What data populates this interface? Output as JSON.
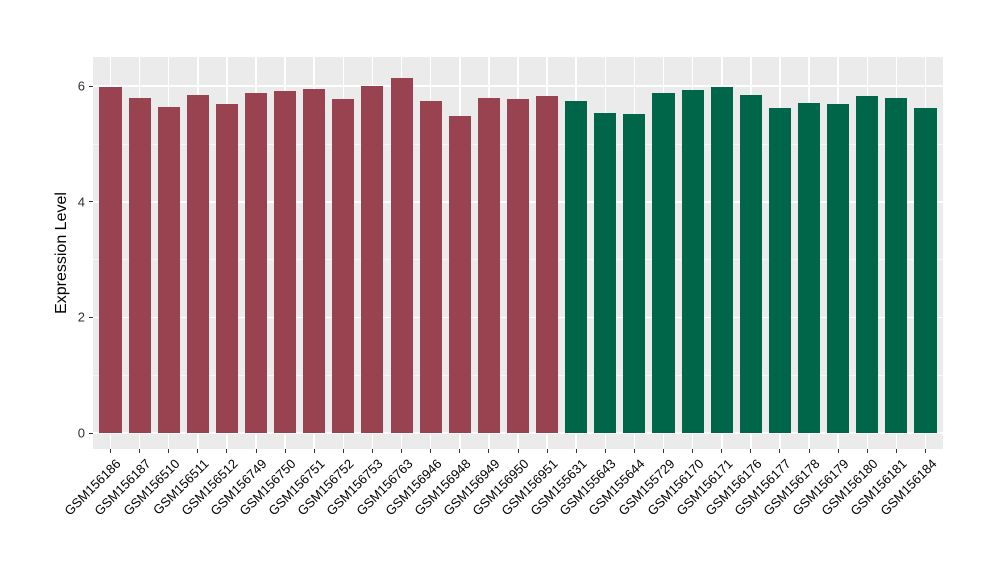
{
  "chart_data": {
    "type": "bar",
    "title": "",
    "xlabel": "",
    "ylabel": "Expression Level",
    "categories": [
      "GSM156186",
      "GSM156187",
      "GSM156510",
      "GSM156511",
      "GSM156512",
      "GSM156749",
      "GSM156750",
      "GSM156751",
      "GSM156752",
      "GSM156753",
      "GSM156763",
      "GSM156946",
      "GSM156948",
      "GSM156949",
      "GSM156950",
      "GSM156951",
      "GSM155631",
      "GSM155643",
      "GSM155644",
      "GSM155729",
      "GSM156170",
      "GSM156171",
      "GSM156176",
      "GSM156177",
      "GSM156178",
      "GSM156179",
      "GSM156180",
      "GSM156181",
      "GSM156184"
    ],
    "values": [
      5.99,
      5.79,
      5.64,
      5.85,
      5.7,
      5.88,
      5.91,
      5.96,
      5.77,
      6.01,
      6.15,
      5.75,
      5.48,
      5.8,
      5.77,
      5.83,
      5.75,
      5.54,
      5.52,
      5.89,
      5.93,
      5.99,
      5.85,
      5.63,
      5.71,
      5.69,
      5.83,
      5.79,
      5.62
    ],
    "groups": [
      "group1",
      "group1",
      "group1",
      "group1",
      "group1",
      "group1",
      "group1",
      "group1",
      "group1",
      "group1",
      "group1",
      "group1",
      "group1",
      "group1",
      "group1",
      "group1",
      "group2",
      "group2",
      "group2",
      "group2",
      "group2",
      "group2",
      "group2",
      "group2",
      "group2",
      "group2",
      "group2",
      "group2",
      "group2"
    ],
    "group_colors": {
      "group1": "#9A4350",
      "group2": "#00664A"
    },
    "y_ticks": [
      "0",
      "2",
      "4",
      "6"
    ],
    "y_tick_values": [
      0,
      2,
      4,
      6
    ],
    "y_minor_tick_values": [
      1,
      3,
      5
    ],
    "ylim": [
      -0.26,
      6.5
    ],
    "x_tick_rotation": 45,
    "grid": "on",
    "legend_position": "none",
    "panel_bg": "#EBEBEB",
    "grid_color": "#FFFFFF"
  }
}
